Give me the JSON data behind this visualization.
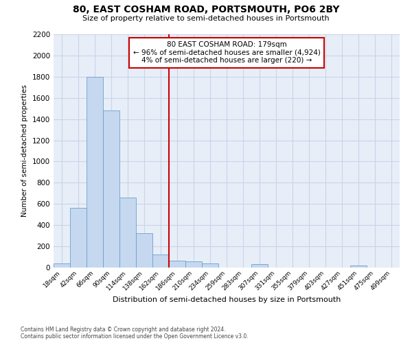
{
  "title": "80, EAST COSHAM ROAD, PORTSMOUTH, PO6 2BY",
  "subtitle": "Size of property relative to semi-detached houses in Portsmouth",
  "xlabel": "Distribution of semi-detached houses by size in Portsmouth",
  "ylabel": "Number of semi-detached properties",
  "footnote1": "Contains HM Land Registry data © Crown copyright and database right 2024.",
  "footnote2": "Contains public sector information licensed under the Open Government Licence v3.0.",
  "bin_labels": [
    "18sqm",
    "42sqm",
    "66sqm",
    "90sqm",
    "114sqm",
    "138sqm",
    "162sqm",
    "186sqm",
    "210sqm",
    "234sqm",
    "259sqm",
    "283sqm",
    "307sqm",
    "331sqm",
    "355sqm",
    "379sqm",
    "403sqm",
    "427sqm",
    "451sqm",
    "475sqm",
    "499sqm"
  ],
  "bar_heights": [
    40,
    560,
    1800,
    1480,
    660,
    325,
    125,
    65,
    60,
    40,
    0,
    0,
    30,
    0,
    0,
    0,
    0,
    0,
    20,
    0,
    0
  ],
  "bar_color": "#c5d8f0",
  "bar_edge_color": "#6aa0cc",
  "vline_x": 7,
  "vline_color": "#cc0000",
  "annotation_title": "80 EAST COSHAM ROAD: 179sqm",
  "annotation_line1": "← 96% of semi-detached houses are smaller (4,924)",
  "annotation_line2": "4% of semi-detached houses are larger (220) →",
  "annotation_box_color": "#cc0000",
  "ylim": [
    0,
    2200
  ],
  "yticks": [
    0,
    200,
    400,
    600,
    800,
    1000,
    1200,
    1400,
    1600,
    1800,
    2000,
    2200
  ],
  "bg_color": "#ffffff",
  "plot_bg_color": "#e8eef8",
  "grid_color": "#c8d4e8"
}
